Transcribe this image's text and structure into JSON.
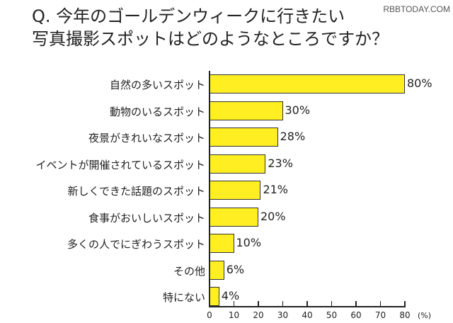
{
  "title": {
    "line1": "Q. 今年のゴールデンウィークに行きたい",
    "line2": "写真撮影スポットはどのようなところですか？"
  },
  "watermark": "RBBTODAY.COM",
  "axis": {
    "ticks": [
      "0",
      "10",
      "20",
      "30",
      "40",
      "50",
      "60",
      "70",
      "80"
    ],
    "unit": "(%)"
  },
  "bars": [
    {
      "label": "自然の多いスポット",
      "value": 80,
      "display": "80%"
    },
    {
      "label": "動物のいるスポット",
      "value": 30,
      "display": "30%"
    },
    {
      "label": "夜景がきれいなスポット",
      "value": 28,
      "display": "28%"
    },
    {
      "label": "イベントが開催されているスポット",
      "value": 23,
      "display": "23%"
    },
    {
      "label": "新しくできた話題のスポット",
      "value": 21,
      "display": "21%"
    },
    {
      "label": "食事がおいしいスポット",
      "value": 20,
      "display": "20%"
    },
    {
      "label": "多くの人でにぎわうスポット",
      "value": 10,
      "display": "10%"
    },
    {
      "label": "その他",
      "value": 6,
      "display": "6%"
    },
    {
      "label": "特にない",
      "value": 4,
      "display": "4%"
    }
  ],
  "colors": {
    "bar_fill": "#ffee22",
    "bar_border": "#333333"
  },
  "chart_data": {
    "type": "bar",
    "orientation": "horizontal",
    "title": "Q. 今年のゴールデンウィークに行きたい写真撮影スポットはどのようなところですか？",
    "categories": [
      "自然の多いスポット",
      "動物のいるスポット",
      "夜景がきれいなスポット",
      "イベントが開催されているスポット",
      "新しくできた話題のスポット",
      "食事がおいしいスポット",
      "多くの人でにぎわうスポット",
      "その他",
      "特にない"
    ],
    "values": [
      80,
      30,
      28,
      23,
      21,
      20,
      10,
      6,
      4
    ],
    "xlabel": "(%)",
    "ylabel": "",
    "xlim": [
      0,
      80
    ],
    "xticks": [
      0,
      10,
      20,
      30,
      40,
      50,
      60,
      70,
      80
    ],
    "grid": false,
    "legend": null,
    "data_labels": [
      "80%",
      "30%",
      "28%",
      "23%",
      "21%",
      "20%",
      "10%",
      "6%",
      "4%"
    ]
  }
}
